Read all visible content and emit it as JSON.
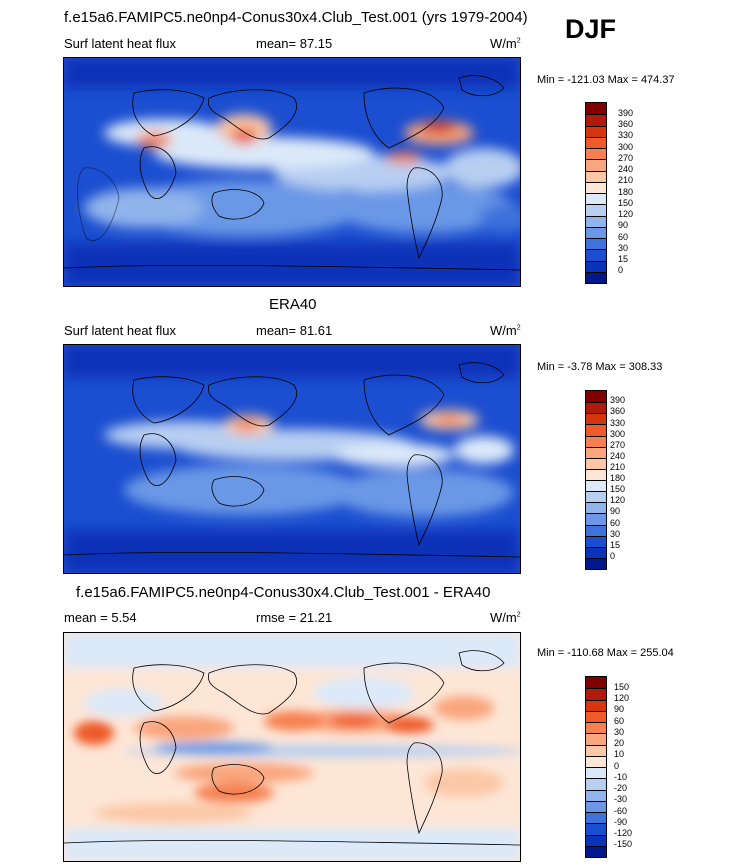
{
  "season": "DJF",
  "panels": [
    {
      "title": "f.e15a6.FAMIPC5.ne0np4-Conus30x4.Club_Test.001 (yrs 1979-2004)",
      "left_label": "Surf latent heat flux",
      "mid_label": "mean=  87.15",
      "units": "W/m",
      "units_sup": "2",
      "minmax": "Min = -121.03 Max = 474.37",
      "colorbar_labels": [
        "390",
        "360",
        "330",
        "300",
        "270",
        "240",
        "210",
        "180",
        "150",
        "120",
        "90",
        "60",
        "30",
        "15",
        "0"
      ]
    },
    {
      "title": "ERA40",
      "left_label": "Surf latent heat flux",
      "mid_label": "mean=  81.61",
      "units": "W/m",
      "units_sup": "2",
      "minmax": "Min =  -3.78 Max = 308.33",
      "colorbar_labels": [
        "390",
        "360",
        "330",
        "300",
        "270",
        "240",
        "210",
        "180",
        "150",
        "120",
        "90",
        "60",
        "30",
        "15",
        "0"
      ]
    },
    {
      "title": "f.e15a6.FAMIPC5.ne0np4-Conus30x4.Club_Test.001 - ERA40",
      "left_label": "mean =   5.54",
      "mid_label": "rmse =  21.21",
      "units": "W/m",
      "units_sup": "2",
      "minmax": "Min = -110.68 Max = 255.04",
      "colorbar_labels": [
        "150",
        "120",
        "90",
        "60",
        "30",
        "20",
        "10",
        "0",
        "-10",
        "-20",
        "-30",
        "-60",
        "-90",
        "-120",
        "-150"
      ]
    }
  ],
  "colors": {
    "abs_scale": [
      "#800000",
      "#b01a0a",
      "#d8350e",
      "#ee5a28",
      "#f6804f",
      "#f9a57d",
      "#fbc7a6",
      "#fde6d6",
      "#dce9f9",
      "#b8cff2",
      "#91b4ec",
      "#6a98e6",
      "#3e72dc",
      "#1b4ed0",
      "#0933b8",
      "#00188c"
    ],
    "diff_scale": [
      "#800000",
      "#b01a0a",
      "#d8350e",
      "#ee5a28",
      "#f6804f",
      "#f9a57d",
      "#fbc7a6",
      "#fde6d6",
      "#dce9f9",
      "#b8cff2",
      "#91b4ec",
      "#6a98e6",
      "#3e72dc",
      "#1b4ed0",
      "#0933b8",
      "#00188c"
    ]
  }
}
